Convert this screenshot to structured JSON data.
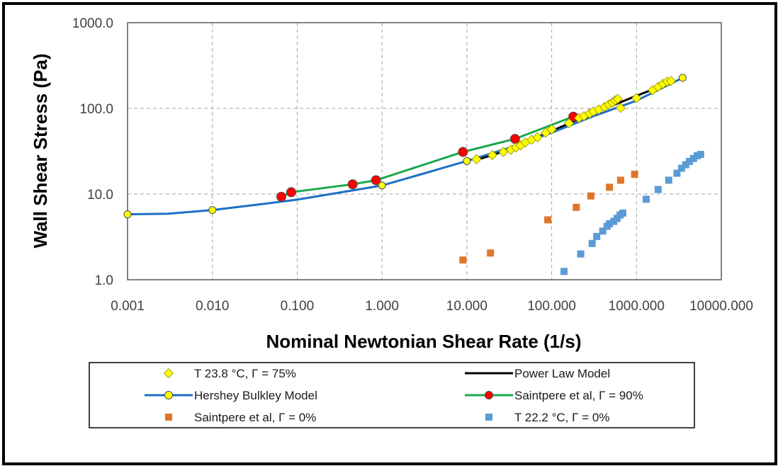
{
  "chart_data": {
    "type": "scatter",
    "xscale": "log",
    "yscale": "log",
    "xlim": [
      0.001,
      10000
    ],
    "ylim": [
      1,
      1000
    ],
    "grid": true,
    "xlabel": "Nominal Newtonian Shear Rate (1/s)",
    "ylabel": "Wall Shear Stress (Pa)",
    "x_ticks": [
      "0.001",
      "0.010",
      "0.100",
      "1.000",
      "10.000",
      "100.000",
      "1000.000",
      "10000.000"
    ],
    "y_ticks": [
      "1.0",
      "10.0",
      "100.0",
      "1000.0"
    ],
    "legend_position": "bottom",
    "series": [
      {
        "name": "T  23.8  °C, Γ = 75%",
        "kind": "markers",
        "marker": "diamond",
        "color": "#ffff00",
        "stroke": "#8c8c00",
        "points": [
          [
            13,
            25.5
          ],
          [
            20,
            28.5
          ],
          [
            27,
            31
          ],
          [
            33,
            33
          ],
          [
            38,
            35
          ],
          [
            43,
            37
          ],
          [
            49,
            40
          ],
          [
            58,
            43
          ],
          [
            68,
            46
          ],
          [
            85,
            52
          ],
          [
            100,
            57
          ],
          [
            160,
            67
          ],
          [
            210,
            77
          ],
          [
            240,
            81
          ],
          [
            280,
            87
          ],
          [
            310,
            92
          ],
          [
            360,
            97
          ],
          [
            420,
            104
          ],
          [
            470,
            111
          ],
          [
            520,
            117
          ],
          [
            560,
            124
          ],
          [
            600,
            129
          ],
          [
            650,
            101
          ],
          [
            1000,
            132
          ],
          [
            1550,
            163
          ],
          [
            1800,
            178
          ],
          [
            2050,
            193
          ],
          [
            2300,
            205
          ],
          [
            2550,
            209
          ]
        ]
      },
      {
        "name": "Power Law Model",
        "kind": "line",
        "color": "#000000",
        "points": [
          [
            13,
            25
          ],
          [
            30,
            32.5
          ],
          [
            100,
            54.5
          ],
          [
            300,
            87
          ],
          [
            1000,
            140
          ],
          [
            1650,
            170
          ],
          [
            2500,
            202
          ]
        ]
      },
      {
        "name": "Hershey Bulkley Model",
        "kind": "line-markers",
        "marker": "circle",
        "color": "#1f6fc5",
        "marker_fill": "#ffff00",
        "points": [
          [
            0.001,
            5.8
          ],
          [
            0.01,
            6.5
          ],
          [
            1,
            12.6
          ],
          [
            10,
            24.3
          ],
          [
            3500,
            227
          ]
        ],
        "curve": [
          [
            0.001,
            5.8
          ],
          [
            0.003,
            5.9
          ],
          [
            0.01,
            6.5
          ],
          [
            0.03,
            7.4
          ],
          [
            0.1,
            8.6
          ],
          [
            0.3,
            10.3
          ],
          [
            1,
            12.6
          ],
          [
            3,
            17.2
          ],
          [
            10,
            24.3
          ],
          [
            30,
            34
          ],
          [
            100,
            52
          ],
          [
            300,
            80
          ],
          [
            1000,
            123
          ],
          [
            3500,
            227
          ]
        ]
      },
      {
        "name": "Saintpere et al, Γ = 90%",
        "kind": "line-markers",
        "marker": "circle",
        "color": "#1aa84a",
        "marker_fill": "#ff0000",
        "points": [
          [
            0.065,
            9.3
          ],
          [
            0.085,
            10.5
          ],
          [
            0.45,
            13
          ],
          [
            0.85,
            14.5
          ],
          [
            9,
            31
          ],
          [
            37,
            44
          ],
          [
            180,
            80
          ]
        ]
      },
      {
        "name": "Saintpere et al, Γ = 0%",
        "kind": "markers",
        "marker": "square",
        "color": "#e0762a",
        "points": [
          [
            9,
            1.7
          ],
          [
            19,
            2.05
          ],
          [
            90,
            5
          ],
          [
            195,
            7
          ],
          [
            290,
            9.5
          ],
          [
            480,
            12
          ],
          [
            650,
            14.5
          ],
          [
            950,
            17
          ]
        ]
      },
      {
        "name": "T  22.2  °C, Γ = 0%",
        "kind": "markers",
        "marker": "square",
        "color": "#5b9bd5",
        "points": [
          [
            140,
            1.25
          ],
          [
            220,
            2.0
          ],
          [
            300,
            2.65
          ],
          [
            340,
            3.2
          ],
          [
            400,
            3.7
          ],
          [
            450,
            4.2
          ],
          [
            480,
            4.5
          ],
          [
            540,
            4.8
          ],
          [
            590,
            5.2
          ],
          [
            640,
            5.7
          ],
          [
            690,
            6.0
          ],
          [
            1300,
            8.7
          ],
          [
            1800,
            11.3
          ],
          [
            2400,
            14.5
          ],
          [
            3000,
            17.5
          ],
          [
            3400,
            20
          ],
          [
            3800,
            22
          ],
          [
            4200,
            24
          ],
          [
            4700,
            26
          ],
          [
            5200,
            28
          ],
          [
            5700,
            29
          ]
        ]
      }
    ]
  }
}
